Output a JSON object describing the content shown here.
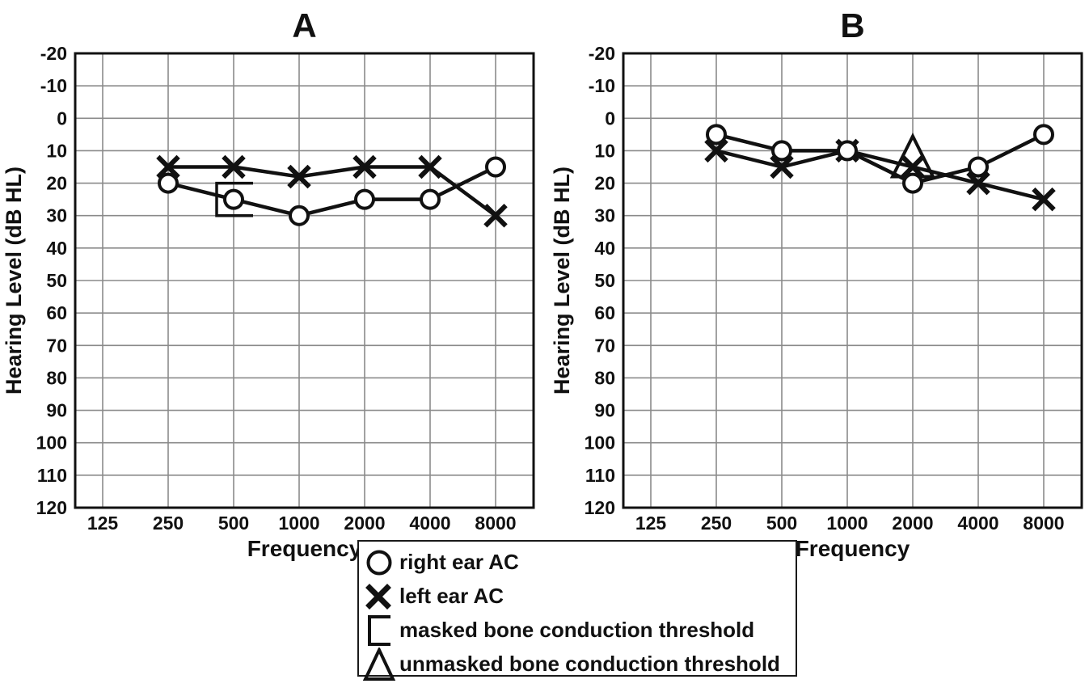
{
  "figure": {
    "background": "#ffffff",
    "ink_color": "#111111",
    "grid_color": "#8a8a8a"
  },
  "chart_data": [
    {
      "type": "line",
      "title": "A",
      "xlabel": "Frequency",
      "ylabel": "Hearing Level (dB HL)",
      "x_ticks": [
        "125",
        "250",
        "500",
        "1000",
        "2000",
        "4000",
        "8000"
      ],
      "y_ticks": [
        "-20",
        "-10",
        "0",
        "10",
        "20",
        "30",
        "40",
        "50",
        "60",
        "70",
        "80",
        "90",
        "100",
        "110",
        "120"
      ],
      "ylim": [
        -20,
        120
      ],
      "y_axis_inverted": true,
      "grid": true,
      "categories": [
        250,
        500,
        1000,
        2000,
        4000,
        8000
      ],
      "series": [
        {
          "name": "right ear AC",
          "marker": "circle",
          "values": [
            20,
            25,
            30,
            25,
            25,
            15
          ]
        },
        {
          "name": "left ear AC",
          "marker": "x",
          "values": [
            15,
            15,
            18,
            15,
            15,
            30
          ]
        }
      ],
      "annotations": [
        {
          "symbol": "bracket",
          "meaning": "masked bone conduction threshold",
          "freq": 500,
          "db": 25,
          "span_db": [
            20,
            30
          ]
        }
      ]
    },
    {
      "type": "line",
      "title": "B",
      "xlabel": "Frequency",
      "ylabel": "Hearing Level (dB HL)",
      "x_ticks": [
        "125",
        "250",
        "500",
        "1000",
        "2000",
        "4000",
        "8000"
      ],
      "y_ticks": [
        "-20",
        "-10",
        "0",
        "10",
        "20",
        "30",
        "40",
        "50",
        "60",
        "70",
        "80",
        "90",
        "100",
        "110",
        "120"
      ],
      "ylim": [
        -20,
        120
      ],
      "y_axis_inverted": true,
      "grid": true,
      "categories": [
        250,
        500,
        1000,
        2000,
        4000,
        8000
      ],
      "series": [
        {
          "name": "right ear AC",
          "marker": "circle",
          "values": [
            5,
            10,
            10,
            20,
            15,
            5
          ]
        },
        {
          "name": "left ear AC",
          "marker": "x",
          "values": [
            10,
            15,
            10,
            15,
            20,
            25
          ]
        }
      ],
      "annotations": [
        {
          "symbol": "triangle",
          "meaning": "unmasked bone conduction threshold",
          "freq": 2000,
          "db": 15
        }
      ]
    }
  ],
  "legend": {
    "items": [
      {
        "symbol": "circle",
        "label": "right ear AC"
      },
      {
        "symbol": "x",
        "label": "left ear AC"
      },
      {
        "symbol": "bracket",
        "label": "masked bone conduction threshold"
      },
      {
        "symbol": "triangle",
        "label": "unmasked bone conduction threshold"
      }
    ]
  }
}
